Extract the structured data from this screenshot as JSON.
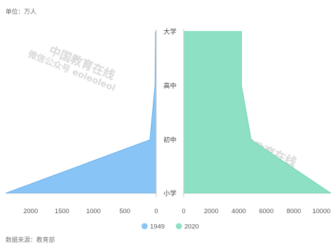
{
  "title": "",
  "unit_label": "单位：万人",
  "source_label": "数据来源：教育部",
  "watermark": {
    "line1": "中国教育在线",
    "line2": "微信公众号 eoleoleol"
  },
  "colors": {
    "left": "#88c4f5",
    "right": "#8de0c3"
  },
  "chart_data": {
    "type": "area",
    "layout": "back-to-back population pyramid",
    "categories": [
      "小学",
      "初中",
      "高中",
      "大学"
    ],
    "series": [
      {
        "name": "1949",
        "values": [
          2400,
          100,
          20,
          12
        ],
        "color": "#88c4f5"
      },
      {
        "name": "2020",
        "values": [
          10700,
          4900,
          4200,
          4200
        ],
        "color": "#8de0c3"
      }
    ],
    "left_axis": {
      "range": [
        2400,
        0
      ],
      "ticks": [
        2000,
        1500,
        1000,
        500,
        0
      ]
    },
    "right_axis": {
      "range": [
        0,
        10700
      ],
      "ticks": [
        0,
        2000,
        4000,
        6000,
        8000,
        10000
      ]
    },
    "xlabel": "",
    "ylabel": "",
    "legend": {
      "position": "bottom-center",
      "entries": [
        "1949",
        "2020"
      ]
    },
    "grid": false
  }
}
